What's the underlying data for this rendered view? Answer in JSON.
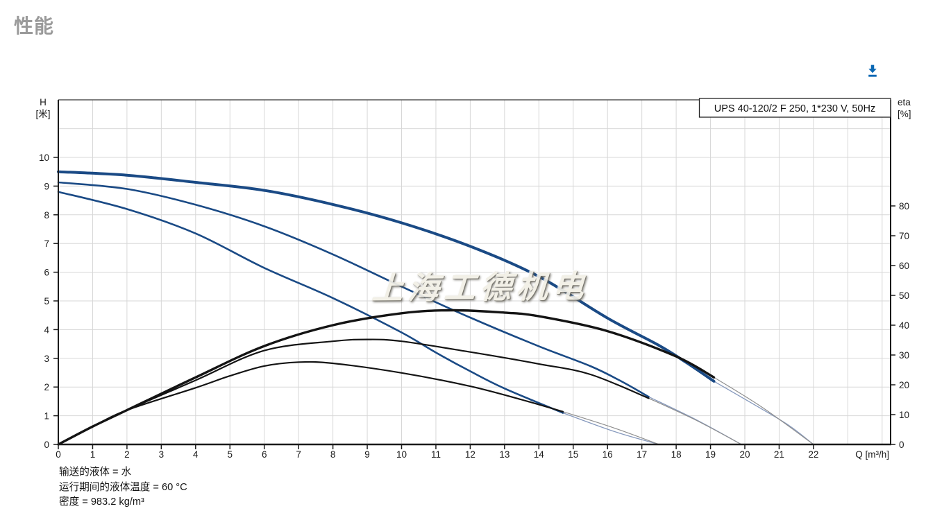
{
  "page": {
    "title": "性能",
    "accent_color": "#0a68b4",
    "background": "#ffffff",
    "title_color": "#9a9a9a"
  },
  "toolbar": {
    "download_icon": "download-icon"
  },
  "watermark": {
    "text": "上海工德机电"
  },
  "footer": {
    "line1": "输送的液体 = 水",
    "line2": "运行期间的液体温度 = 60 °C",
    "line3": "密度 = 983.2 kg/m³"
  },
  "chart_data": {
    "type": "line",
    "title": "UPS 40-120/2 F 250, 1*230 V, 50Hz",
    "grid": true,
    "legend_position": "none",
    "x_axis": {
      "label": "Q [m³/h]",
      "min": 0,
      "max": 24.25,
      "ticks": [
        0,
        1,
        2,
        3,
        4,
        5,
        6,
        7,
        8,
        9,
        10,
        11,
        12,
        13,
        14,
        15,
        16,
        17,
        18,
        19,
        20,
        21,
        22
      ]
    },
    "y_left": {
      "label_line1": "H",
      "label_line2": "[米]",
      "min": 0,
      "max": 12,
      "ticks": [
        0,
        1,
        2,
        3,
        4,
        5,
        6,
        7,
        8,
        9,
        10
      ]
    },
    "y_right": {
      "label_line1": "eta",
      "label_line2": "[%]",
      "min": 0,
      "max": 115.6,
      "ticks": [
        0,
        10,
        20,
        30,
        40,
        50,
        60,
        70,
        80
      ]
    },
    "colors": {
      "curve_blue": "#1a4a85",
      "curve_black": "#141414",
      "ext_blue": "#8699bd",
      "ext_gray": "#8f8f8f",
      "grid": "#d7d7d7",
      "axis": "#1a1a1a"
    },
    "series": [
      {
        "name": "head-speed3",
        "axis": "left",
        "role": "solid",
        "color_key": "curve_blue",
        "width": 4,
        "points": [
          [
            0,
            9.5
          ],
          [
            2,
            9.38
          ],
          [
            4,
            9.13
          ],
          [
            6,
            8.85
          ],
          [
            8,
            8.36
          ],
          [
            10,
            7.72
          ],
          [
            12,
            6.9
          ],
          [
            14,
            5.85
          ],
          [
            16,
            4.4
          ],
          [
            17.5,
            3.45
          ],
          [
            18.3,
            2.85
          ],
          [
            19.1,
            2.2
          ]
        ]
      },
      {
        "name": "head-speed3-ext",
        "axis": "left",
        "role": "ext",
        "color_key": "ext_blue",
        "width": 1.3,
        "points": [
          [
            19.1,
            2.2
          ],
          [
            20.4,
            1.3
          ],
          [
            21.3,
            0.65
          ],
          [
            22,
            0
          ]
        ]
      },
      {
        "name": "head-speed2",
        "axis": "left",
        "role": "solid",
        "color_key": "curve_blue",
        "width": 2.6,
        "points": [
          [
            0,
            9.13
          ],
          [
            2,
            8.9
          ],
          [
            4,
            8.35
          ],
          [
            6,
            7.6
          ],
          [
            8,
            6.62
          ],
          [
            10,
            5.5
          ],
          [
            12,
            4.42
          ],
          [
            14,
            3.42
          ],
          [
            15.5,
            2.73
          ],
          [
            16.4,
            2.2
          ],
          [
            17.2,
            1.66
          ]
        ]
      },
      {
        "name": "head-speed2-ext",
        "axis": "left",
        "role": "ext",
        "color_key": "ext_blue",
        "width": 1.3,
        "points": [
          [
            17.2,
            1.66
          ],
          [
            18.6,
            0.85
          ],
          [
            19.9,
            0
          ]
        ]
      },
      {
        "name": "head-speed1",
        "axis": "left",
        "role": "solid",
        "color_key": "curve_blue",
        "width": 2.6,
        "points": [
          [
            0,
            8.8
          ],
          [
            2,
            8.2
          ],
          [
            4,
            7.35
          ],
          [
            6,
            6.15
          ],
          [
            8,
            5.1
          ],
          [
            10,
            3.9
          ],
          [
            11,
            3.2
          ],
          [
            12,
            2.55
          ],
          [
            13,
            1.95
          ],
          [
            14.7,
            1.1
          ]
        ]
      },
      {
        "name": "head-speed1-ext",
        "axis": "left",
        "role": "ext",
        "color_key": "ext_blue",
        "width": 1.3,
        "points": [
          [
            14.7,
            1.1
          ],
          [
            16.2,
            0.45
          ],
          [
            17.5,
            0
          ]
        ]
      },
      {
        "name": "eta-speed3",
        "axis": "right",
        "role": "solid",
        "color_key": "curve_black",
        "width": 3.4,
        "points": [
          [
            0,
            0
          ],
          [
            1,
            6
          ],
          [
            2,
            11.5
          ],
          [
            4,
            22.5
          ],
          [
            6,
            33
          ],
          [
            8,
            40
          ],
          [
            10,
            44
          ],
          [
            11.5,
            45
          ],
          [
            13,
            44.2
          ],
          [
            14,
            43
          ],
          [
            16,
            38
          ],
          [
            18,
            29.5
          ],
          [
            19.1,
            22.5
          ]
        ]
      },
      {
        "name": "eta-speed3-ext",
        "axis": "right",
        "role": "ext",
        "color_key": "ext_gray",
        "width": 1.2,
        "points": [
          [
            19.1,
            22.5
          ],
          [
            20.5,
            12.5
          ],
          [
            22,
            0
          ]
        ]
      },
      {
        "name": "eta-speed2",
        "axis": "right",
        "role": "solid",
        "color_key": "curve_black",
        "width": 2.2,
        "points": [
          [
            0,
            0
          ],
          [
            1,
            6
          ],
          [
            2,
            11.5
          ],
          [
            4,
            21.5
          ],
          [
            6,
            31.5
          ],
          [
            8,
            34.6
          ],
          [
            9,
            35.2
          ],
          [
            10,
            34.6
          ],
          [
            12,
            31
          ],
          [
            14,
            27
          ],
          [
            15.5,
            23.5
          ],
          [
            17.2,
            15.5
          ]
        ]
      },
      {
        "name": "eta-speed2-ext",
        "axis": "right",
        "role": "ext",
        "color_key": "ext_gray",
        "width": 1.2,
        "points": [
          [
            17.2,
            15.5
          ],
          [
            18.6,
            8
          ],
          [
            19.9,
            0
          ]
        ]
      },
      {
        "name": "eta-speed1",
        "axis": "right",
        "role": "solid",
        "color_key": "curve_black",
        "width": 2.2,
        "points": [
          [
            0,
            0
          ],
          [
            1,
            6
          ],
          [
            2,
            11.5
          ],
          [
            4,
            19
          ],
          [
            5,
            23
          ],
          [
            6,
            26.3
          ],
          [
            7,
            27.6
          ],
          [
            8,
            27.2
          ],
          [
            10,
            24
          ],
          [
            12,
            19.5
          ],
          [
            13.5,
            15
          ],
          [
            14.7,
            11
          ]
        ]
      },
      {
        "name": "eta-speed1-ext",
        "axis": "right",
        "role": "ext",
        "color_key": "ext_gray",
        "width": 1.2,
        "points": [
          [
            14.7,
            11
          ],
          [
            16.2,
            5.5
          ],
          [
            17.5,
            0
          ]
        ]
      }
    ]
  }
}
